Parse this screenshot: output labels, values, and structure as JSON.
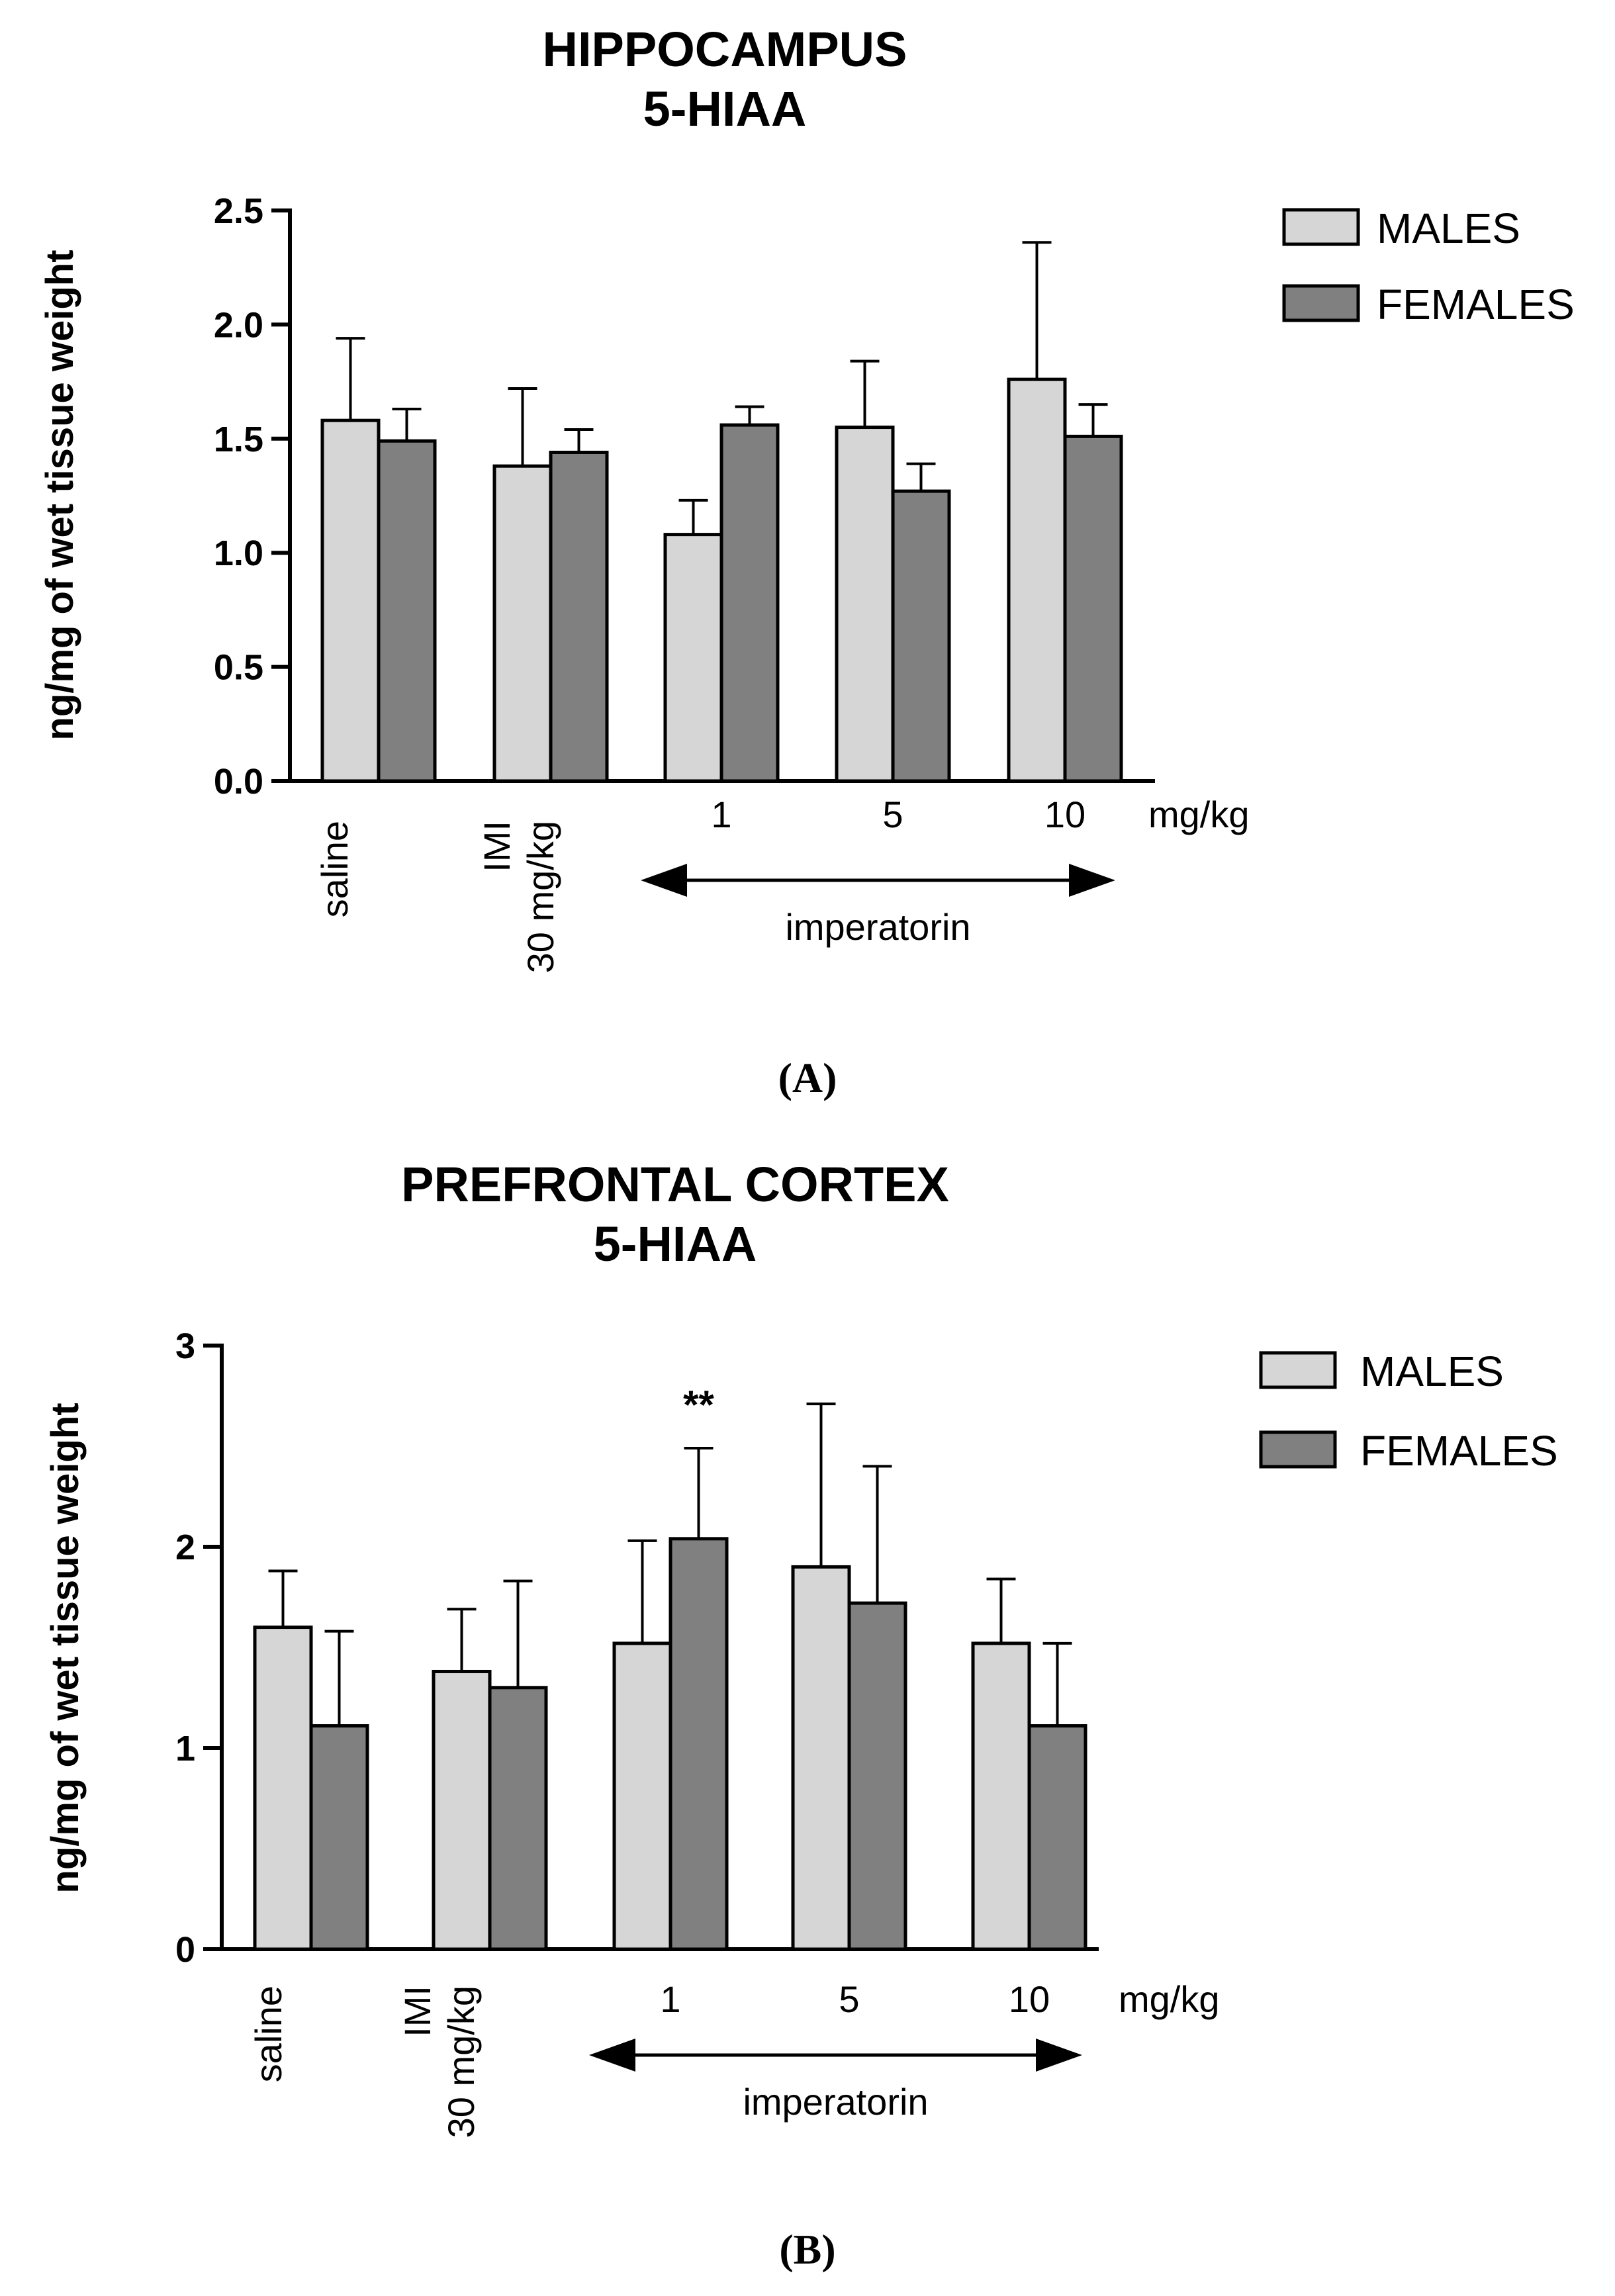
{
  "chart_data": [
    {
      "type": "bar",
      "panel_label": "(A)",
      "title": [
        "HIPPOCAMPUS",
        "5-HIAA"
      ],
      "ylabel": "ng/mg of wet tissue weight",
      "ylim": [
        0,
        2.5
      ],
      "yticks": [
        "0.0",
        "0.5",
        "1.0",
        "1.5",
        "2.0",
        "2.5"
      ],
      "categories": [
        "saline",
        "IMI 30 mg/kg",
        "1",
        "5",
        "10"
      ],
      "x_unit_label": "mg/kg",
      "group_label": "imperatorin",
      "legend": [
        "MALES",
        "FEMALES"
      ],
      "series": [
        {
          "name": "MALES",
          "color": "#d6d6d6",
          "values": [
            1.58,
            1.38,
            1.08,
            1.55,
            1.76
          ],
          "errors": [
            0.36,
            0.34,
            0.15,
            0.29,
            0.6
          ]
        },
        {
          "name": "FEMALES",
          "color": "#808080",
          "values": [
            1.49,
            1.44,
            1.56,
            1.27,
            1.51
          ],
          "errors": [
            0.14,
            0.1,
            0.08,
            0.12,
            0.14
          ]
        }
      ],
      "annotations": []
    },
    {
      "type": "bar",
      "panel_label": "(B)",
      "title": [
        "PREFRONTAL CORTEX",
        "5-HIAA"
      ],
      "ylabel": "ng/mg of wet tissue weight",
      "ylim": [
        0,
        3
      ],
      "yticks": [
        "0",
        "1",
        "2",
        "3"
      ],
      "categories": [
        "saline",
        "IMI 30 mg/kg",
        "1",
        "5",
        "10"
      ],
      "x_unit_label": "mg/kg",
      "group_label": "imperatorin",
      "legend": [
        "MALES",
        "FEMALES"
      ],
      "series": [
        {
          "name": "MALES",
          "color": "#d6d6d6",
          "values": [
            1.6,
            1.38,
            1.52,
            1.9,
            1.52
          ],
          "errors": [
            0.28,
            0.31,
            0.51,
            0.81,
            0.32
          ]
        },
        {
          "name": "FEMALES",
          "color": "#808080",
          "values": [
            1.11,
            1.3,
            2.04,
            1.72,
            1.11
          ],
          "errors": [
            0.47,
            0.53,
            0.45,
            0.68,
            0.41
          ]
        }
      ],
      "annotations": [
        {
          "category": 2,
          "series": 1,
          "text": "**"
        }
      ]
    }
  ]
}
